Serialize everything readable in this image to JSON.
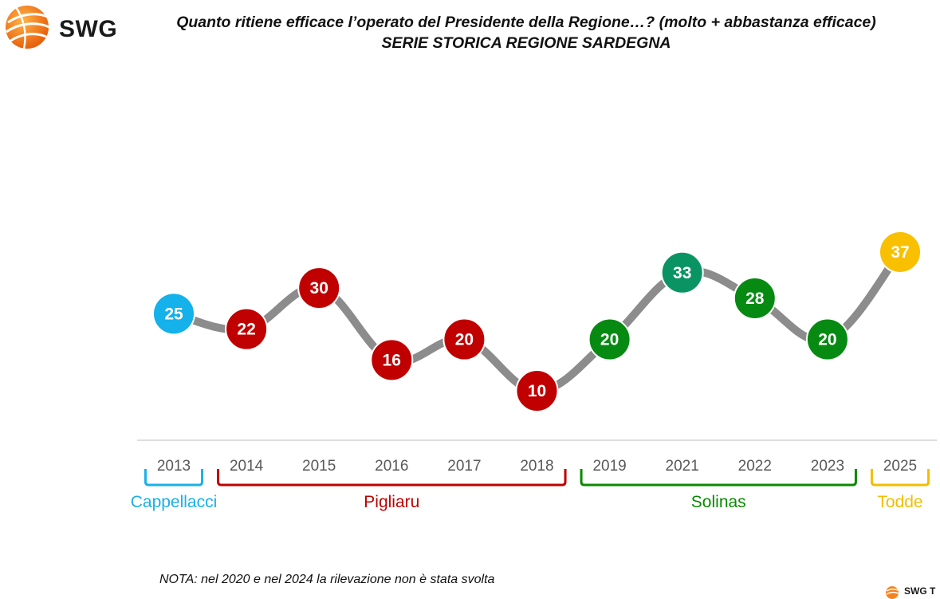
{
  "brand": {
    "name": "SWG",
    "footer_text": "SWG T"
  },
  "title": {
    "line1": "Quanto ritiene efficace l’operato del Presidente della Regione…? (molto + abbastanza efficace)",
    "line2": "SERIE STORICA REGIONE SARDEGNA"
  },
  "note": "NOTA: nel 2020 e nel 2024 la rilevazione non è stata svolta",
  "colors": {
    "line": "#8c8c8c",
    "baseline": "#d4d4d4",
    "tick": "#595959",
    "brand_orange": "#f58220"
  },
  "chart_data": {
    "type": "line",
    "title": "Quanto ritiene efficace l’operato del Presidente della Regione…? (molto + abbastanza efficace)",
    "subtitle": "SERIE STORICA REGIONE SARDEGNA",
    "xlabel": "",
    "ylabel": "",
    "categories": [
      "2013",
      "2014",
      "2015",
      "2016",
      "2017",
      "2018",
      "2019",
      "2021",
      "2022",
      "2023",
      "2025"
    ],
    "values": [
      25,
      22,
      30,
      16,
      20,
      10,
      20,
      33,
      28,
      20,
      37
    ],
    "marker_groups": [
      "Cappellacci",
      "Pigliaru",
      "Pigliaru",
      "Pigliaru",
      "Pigliaru",
      "Pigliaru",
      "Solinas",
      "Solinas-2021",
      "Solinas",
      "Solinas",
      "Todde"
    ],
    "ylim": [
      0,
      40
    ],
    "grid": false,
    "data_labels": true,
    "groups": [
      {
        "name": "Cappellacci",
        "start": 0,
        "end": 0,
        "color": "#1ab0e8"
      },
      {
        "name": "Pigliaru",
        "start": 1,
        "end": 5,
        "color": "#c00000"
      },
      {
        "name": "Solinas",
        "start": 6,
        "end": 9,
        "color": "#0a8a00"
      },
      {
        "name": "Todde",
        "start": 10,
        "end": 10,
        "color": "#f3bd00"
      }
    ],
    "marker_colors": {
      "Cappellacci": "#14b1ea",
      "Pigliaru": "#c00000",
      "Solinas": "#078a12",
      "Solinas-2021": "#0b9463",
      "Todde": "#f8c000"
    }
  }
}
